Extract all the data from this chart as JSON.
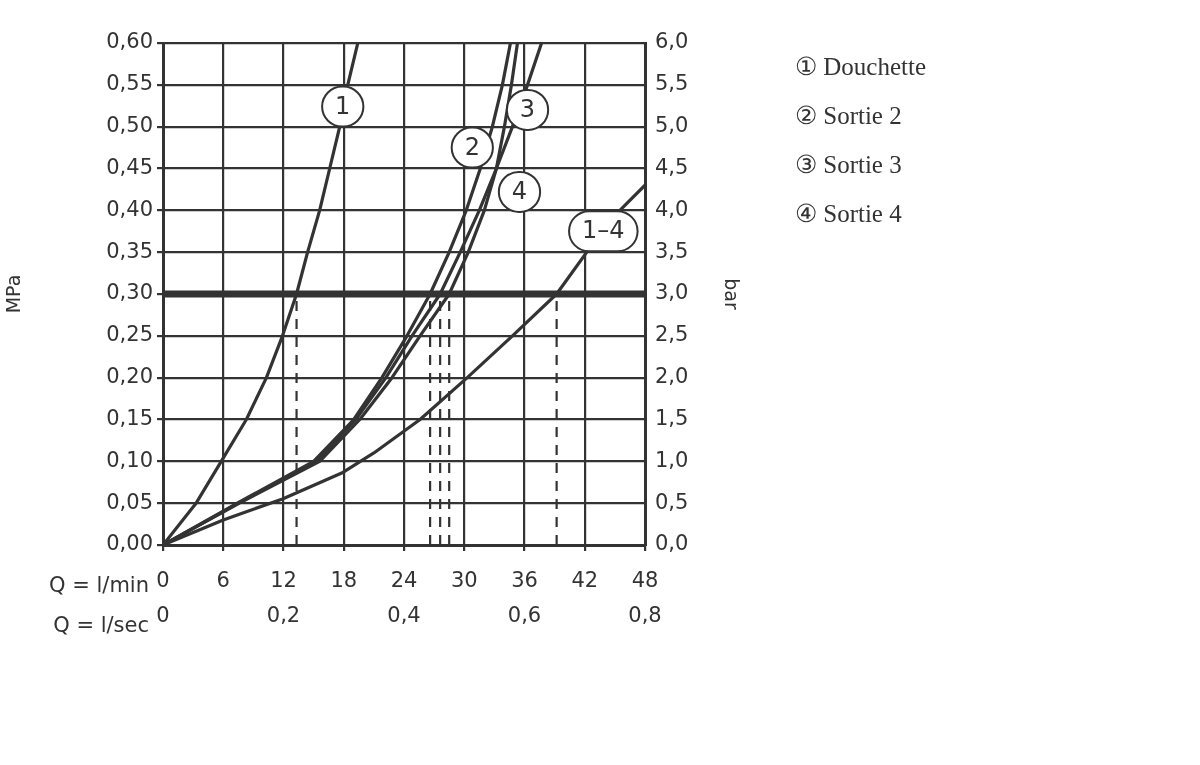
{
  "chart_data": {
    "type": "line",
    "xlabel": "Q = l/min",
    "x2label": "Q = l/sec",
    "ylabel": "MPa",
    "y2label": "bar",
    "xlim": [
      0,
      48
    ],
    "xticks": [
      0,
      6,
      12,
      18,
      24,
      30,
      36,
      42,
      48
    ],
    "x2lim": [
      0,
      0.8
    ],
    "x2ticks": [
      0,
      {
        "value": 0.2,
        "label": "0,2"
      },
      {
        "value": 0.4,
        "label": "0,4"
      },
      {
        "value": 0.6,
        "label": "0,6"
      },
      {
        "value": 0.8,
        "label": "0,8"
      }
    ],
    "ylim": [
      0,
      0.6
    ],
    "yticks": [
      {
        "value": 0,
        "label": "0,00"
      },
      {
        "value": 0.05,
        "label": "0,05"
      },
      {
        "value": 0.1,
        "label": "0,10"
      },
      {
        "value": 0.15,
        "label": "0,15"
      },
      {
        "value": 0.2,
        "label": "0,20"
      },
      {
        "value": 0.25,
        "label": "0,25"
      },
      {
        "value": 0.3,
        "label": "0,30"
      },
      {
        "value": 0.35,
        "label": "0,35"
      },
      {
        "value": 0.4,
        "label": "0,40"
      },
      {
        "value": 0.45,
        "label": "0,45"
      },
      {
        "value": 0.5,
        "label": "0,50"
      },
      {
        "value": 0.55,
        "label": "0,55"
      },
      {
        "value": 0.6,
        "label": "0,60"
      }
    ],
    "y2lim": [
      0,
      6
    ],
    "y2ticks": [
      {
        "value": 0,
        "label": "0,0"
      },
      {
        "value": 0.5,
        "label": "0,5"
      },
      {
        "value": 1,
        "label": "1,0"
      },
      {
        "value": 1.5,
        "label": "1,5"
      },
      {
        "value": 2,
        "label": "2,0"
      },
      {
        "value": 2.5,
        "label": "2,5"
      },
      {
        "value": 3,
        "label": "3,0"
      },
      {
        "value": 3.5,
        "label": "3,5"
      },
      {
        "value": 4,
        "label": "4,0"
      },
      {
        "value": 4.5,
        "label": "4,5"
      },
      {
        "value": 5,
        "label": "5,0"
      },
      {
        "value": 5.5,
        "label": "5,5"
      },
      {
        "value": 6,
        "label": "6,0"
      }
    ],
    "grid": true,
    "legend": "right",
    "marker": "none",
    "line_style": "solid",
    "series": [
      {
        "name": "① Douchette",
        "color": "#333333",
        "x": [
          0,
          3.3,
          5.8,
          8.3,
          10.3,
          11.9,
          13.3,
          14.4,
          15.6,
          16.6,
          17.6,
          18.4,
          19.4
        ],
        "values": [
          0,
          0.05,
          0.1,
          0.15,
          0.2,
          0.25,
          0.3,
          0.35,
          0.4,
          0.45,
          0.5,
          0.55,
          0.6
        ]
      },
      {
        "name": "② Sortie 2",
        "color": "#333333",
        "x": [
          0,
          7.4,
          15,
          19,
          21.8,
          24.3,
          26.6,
          28.5,
          30.2,
          31.6,
          32.8,
          33.8,
          34.6
        ],
        "values": [
          0,
          0.05,
          0.1,
          0.15,
          0.2,
          0.25,
          0.3,
          0.35,
          0.4,
          0.45,
          0.5,
          0.55,
          0.6
        ]
      },
      {
        "name": "③ Sortie 3",
        "color": "#333333",
        "x": [
          0,
          7.5,
          15.3,
          19.2,
          22.2,
          24.8,
          27.6,
          29.6,
          31.5,
          33.2,
          34.8,
          36.3,
          37.7
        ],
        "values": [
          0,
          0.05,
          0.1,
          0.15,
          0.2,
          0.25,
          0.3,
          0.35,
          0.4,
          0.45,
          0.5,
          0.55,
          0.6
        ]
      },
      {
        "name": "④ Sortie 4",
        "color": "#333333",
        "x": [
          0,
          7.6,
          15.6,
          19.6,
          22.8,
          25.6,
          28.5,
          30.4,
          32,
          33.2,
          34,
          34.7,
          35.3
        ],
        "values": [
          0,
          0.05,
          0.1,
          0.15,
          0.2,
          0.25,
          0.3,
          0.35,
          0.4,
          0.45,
          0.5,
          0.55,
          0.6
        ]
      },
      {
        "color": "#333333",
        "x": [
          0,
          6,
          11.9,
          17.8,
          21,
          25.6,
          30.3,
          34.8,
          39.2,
          42.2,
          45.5,
          48
        ],
        "values": [
          0,
          0.03,
          0.055,
          0.086,
          0.11,
          0.15,
          0.2,
          0.25,
          0.3,
          0.35,
          0.4,
          0.43
        ]
      }
    ],
    "ref_lines": [
      {
        "axis": "y",
        "value": 0.3,
        "color": "#333333",
        "line_style": "solid"
      },
      {
        "axis": "x",
        "value": 13.3,
        "color": "#333333",
        "line_style": "dashed"
      },
      {
        "axis": "x",
        "value": 26.6,
        "color": "#333333",
        "line_style": "dashed"
      },
      {
        "axis": "x",
        "value": 27.6,
        "color": "#333333",
        "line_style": "dashed"
      },
      {
        "axis": "x",
        "value": 28.5,
        "color": "#333333",
        "line_style": "dashed"
      },
      {
        "axis": "x",
        "value": 39.2,
        "color": "#333333",
        "line_style": "dashed"
      }
    ],
    "annotations": [
      {
        "text": "1",
        "x": 17.9,
        "y": 0.524
      },
      {
        "text": "2",
        "x": 30.8,
        "y": 0.475
      },
      {
        "text": "3",
        "x": 36.3,
        "y": 0.52
      },
      {
        "text": "4",
        "x": 35.5,
        "y": 0.422
      },
      {
        "text": "1–4",
        "x": 43.85,
        "y": 0.375
      }
    ]
  }
}
